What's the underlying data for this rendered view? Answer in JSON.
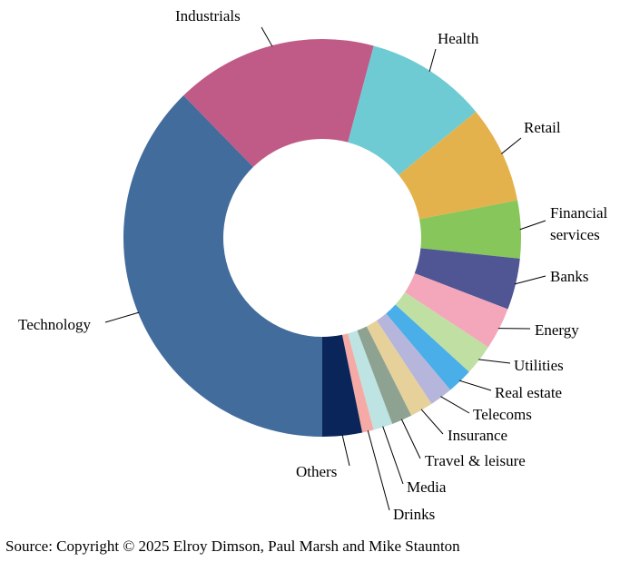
{
  "chart_data": {
    "type": "pie",
    "donut": true,
    "title": "",
    "legend": "none",
    "unit": "share of total (approx.)",
    "slices": [
      {
        "label": "Technology",
        "value": 36.2,
        "color": "#426c9c"
      },
      {
        "label": "Industrials",
        "value": 15.8,
        "color": "#c05a86"
      },
      {
        "label": "Health",
        "value": 9.5,
        "color": "#6ecbd3"
      },
      {
        "label": "Retail",
        "value": 7.6,
        "color": "#e4b24d"
      },
      {
        "label": "Financial services",
        "label_lines": [
          "Financial",
          "services"
        ],
        "value": 4.5,
        "color": "#86c65b"
      },
      {
        "label": "Banks",
        "value": 4.0,
        "color": "#505594"
      },
      {
        "label": "Energy",
        "value": 3.3,
        "color": "#f4a7bb"
      },
      {
        "label": "Utilities",
        "value": 2.4,
        "color": "#bfdfa3"
      },
      {
        "label": "Real estate",
        "value": 2.0,
        "color": "#4aaee8"
      },
      {
        "label": "Telecoms",
        "value": 1.8,
        "color": "#b6b5dc"
      },
      {
        "label": "Insurance",
        "value": 1.8,
        "color": "#e7d19a"
      },
      {
        "label": "Travel & leisure",
        "value": 1.6,
        "color": "#8da291"
      },
      {
        "label": "Media",
        "value": 1.5,
        "color": "#bde4e2"
      },
      {
        "label": "Drinks",
        "value": 0.9,
        "color": "#f5aaa6"
      },
      {
        "label": "Others",
        "value": 3.1,
        "color": "#0a2559"
      }
    ]
  },
  "source": "Source: Copyright © 2025 Elroy Dimson, Paul Marsh and Mike Staunton"
}
